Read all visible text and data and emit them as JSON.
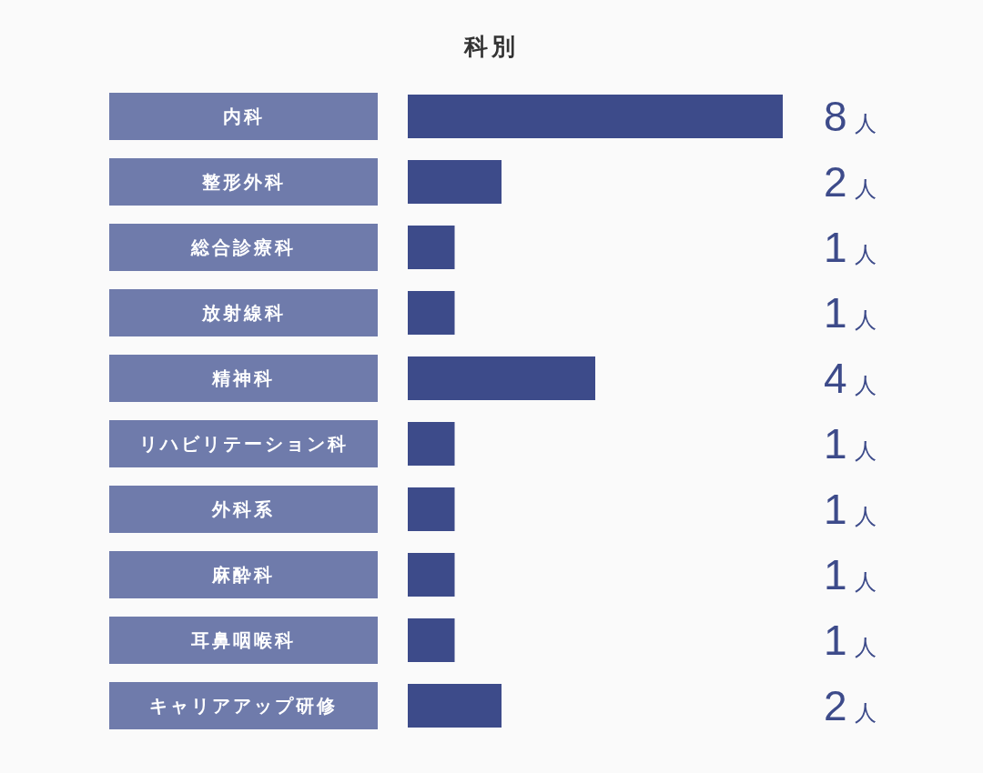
{
  "chart_data": {
    "type": "bar",
    "title": "科別",
    "orientation": "horizontal",
    "categories": [
      "内科",
      "整形外科",
      "総合診療科",
      "放射線科",
      "精神科",
      "リハビリテーション科",
      "外科系",
      "麻酔科",
      "耳鼻咽喉科",
      "キャリアアップ研修"
    ],
    "values": [
      8,
      2,
      1,
      1,
      4,
      1,
      1,
      1,
      1,
      2
    ],
    "value_labels": [
      "8人",
      "2人",
      "1人",
      "1人",
      "4人",
      "1人",
      "1人",
      "1人",
      "1人",
      "2人"
    ],
    "color": "#3d4b8a",
    "xlim": [
      0,
      8
    ],
    "tick_labels": "y"
  }
}
